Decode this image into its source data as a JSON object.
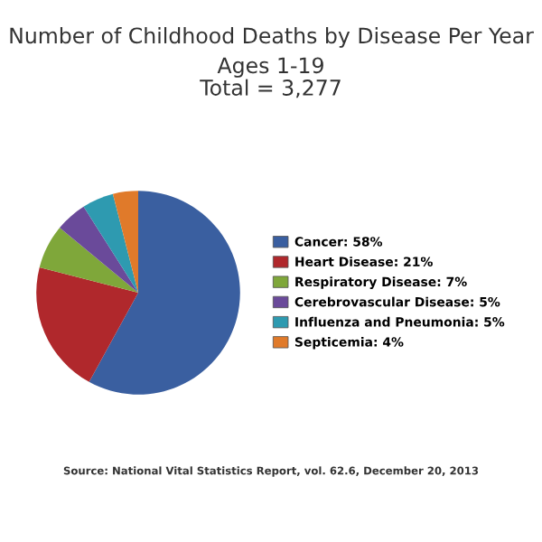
{
  "chart_data": {
    "type": "pie",
    "title": "Number of Childhood Deaths by Disease Per Year",
    "subtitle": "Ages 1-19\nTotal = 3,277",
    "categories": [
      "Cancer: 58%",
      "Heart Disease: 21%",
      "Respiratory Disease: 7%",
      "Cerebrovascular Disease: 5%",
      "Influenza and Pneumonia: 5%",
      "Septicemia: 4%"
    ],
    "values": [
      58,
      21,
      7,
      5,
      5,
      4
    ],
    "colors": [
      "#3a5fa0",
      "#b0282c",
      "#7fa73a",
      "#6a4a9a",
      "#2e9ab0",
      "#e07a2a"
    ],
    "legend": "right",
    "annotations": [
      "Source: National Vital Statistics Report, vol. 62.6, December 20, 2013"
    ]
  }
}
